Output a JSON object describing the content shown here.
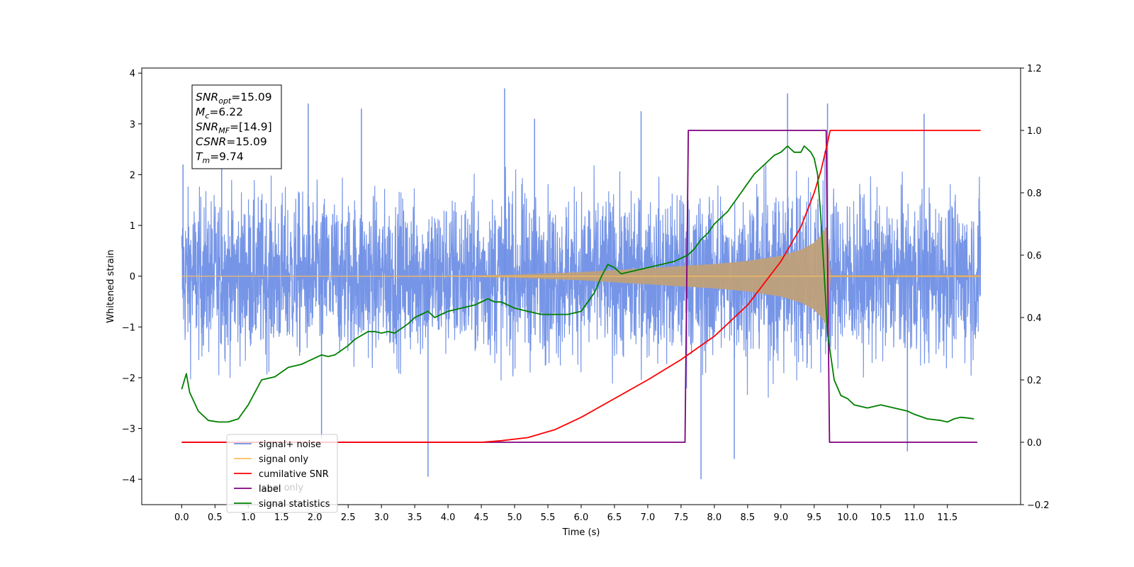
{
  "chart_data": {
    "type": "line",
    "title": "",
    "xlabel": "Time (s)",
    "ylabel": "Whitened strain",
    "ylabel_right": "",
    "xlim": [
      -0.6,
      12.6
    ],
    "ylim_left": [
      -4.5,
      4.1
    ],
    "ylim_right": [
      -0.2,
      1.2
    ],
    "x_ticks": [
      0.0,
      0.5,
      1.0,
      1.5,
      2.0,
      2.5,
      3.0,
      3.5,
      4.0,
      4.5,
      5.0,
      5.5,
      6.0,
      6.5,
      7.0,
      7.5,
      8.0,
      8.5,
      9.0,
      9.5,
      10.0,
      10.5,
      11.0,
      11.5
    ],
    "x_tick_labels": [
      "0.0",
      "0.5",
      "1.0",
      "1.5",
      "2.0",
      "2.5",
      "3.0",
      "3.5",
      "4.0",
      "4.5",
      "5.0",
      "5.5",
      "6.0",
      "6.5",
      "7.0",
      "7.5",
      "8.0",
      "8.5",
      "9.0",
      "9.5",
      "10.0",
      "10.5",
      "11.0",
      "11.5"
    ],
    "y_ticks_left": [
      4,
      3,
      2,
      1,
      0,
      -1,
      -2,
      -3,
      -4
    ],
    "y_tick_labels_left": [
      "4",
      "3",
      "2",
      "1",
      "0",
      "−1",
      "−2",
      "−3",
      "−4"
    ],
    "y_ticks_right": [
      1.2,
      1.0,
      0.8,
      0.6,
      0.4,
      0.2,
      0.0,
      -0.2
    ],
    "y_tick_labels_right": [
      "1.2",
      "1.0",
      "0.8",
      "0.6",
      "0.4",
      "0.2",
      "0.0",
      "−0.2"
    ],
    "grid": false,
    "legend_position": "lower-left",
    "series": [
      {
        "name": "signal+ noise",
        "axis": "left",
        "color": "#6f8fe6",
        "description_x_range": [
          0.0,
          12.0
        ],
        "noise_band": [
          -2.2,
          2.2
        ],
        "spikes_x": [
          0.02,
          0.6,
          1.9,
          2.1,
          2.7,
          3.7,
          4.85,
          5.3,
          6.9,
          7.8,
          8.3,
          9.1,
          9.7,
          10.9,
          11.15
        ],
        "spikes_y": [
          2.2,
          2.7,
          3.4,
          -3.2,
          3.3,
          -3.95,
          3.7,
          3.1,
          3.25,
          -4.0,
          -3.6,
          3.6,
          3.4,
          -3.45,
          3.2
        ]
      },
      {
        "name": "signal only",
        "axis": "left",
        "color": "#ffbf5a",
        "x": [
          0.0,
          4.0,
          5.0,
          6.0,
          6.5,
          7.0,
          7.5,
          8.0,
          8.5,
          9.0,
          9.3,
          9.5,
          9.6,
          9.7,
          9.74,
          12.0
        ],
        "envelope": [
          0.0,
          0.01,
          0.03,
          0.08,
          0.12,
          0.16,
          0.2,
          0.24,
          0.3,
          0.4,
          0.52,
          0.66,
          0.8,
          1.0,
          0.02,
          0.02
        ]
      },
      {
        "name": "cumilative SNR",
        "axis": "right",
        "color": "#ff0000",
        "x": [
          0.0,
          4.5,
          4.8,
          5.2,
          5.6,
          6.0,
          6.5,
          7.0,
          7.5,
          8.0,
          8.5,
          9.0,
          9.3,
          9.5,
          9.6,
          9.7,
          9.74,
          12.0
        ],
        "values": [
          0.0,
          0.0,
          0.005,
          0.015,
          0.04,
          0.08,
          0.14,
          0.2,
          0.265,
          0.34,
          0.44,
          0.58,
          0.69,
          0.8,
          0.87,
          0.96,
          1.0,
          1.0
        ]
      },
      {
        "name": "label",
        "axis": "right",
        "color": "#7f007f",
        "x": [
          0.0,
          7.56,
          7.61,
          9.68,
          9.73,
          11.95
        ],
        "values": [
          0.0,
          0.0,
          1.0,
          1.0,
          0.0,
          0.0
        ]
      },
      {
        "name": "signal statistics",
        "axis": "right",
        "color": "#008000",
        "x": [
          0.0,
          0.07,
          0.12,
          0.25,
          0.4,
          0.55,
          0.7,
          0.85,
          1.0,
          1.2,
          1.4,
          1.6,
          1.8,
          1.9,
          2.0,
          2.1,
          2.2,
          2.3,
          2.5,
          2.6,
          2.8,
          2.9,
          3.0,
          3.1,
          3.2,
          3.4,
          3.5,
          3.7,
          3.8,
          4.0,
          4.2,
          4.4,
          4.5,
          4.6,
          4.7,
          4.8,
          5.0,
          5.2,
          5.4,
          5.6,
          5.8,
          6.0,
          6.2,
          6.3,
          6.4,
          6.5,
          6.6,
          6.8,
          7.0,
          7.2,
          7.4,
          7.6,
          7.7,
          7.8,
          7.9,
          8.0,
          8.2,
          8.4,
          8.5,
          8.6,
          8.8,
          8.9,
          9.0,
          9.1,
          9.2,
          9.3,
          9.35,
          9.4,
          9.45,
          9.5,
          9.55,
          9.6,
          9.65,
          9.7,
          9.8,
          9.9,
          10.0,
          10.1,
          10.3,
          10.5,
          10.7,
          10.9,
          11.0,
          11.2,
          11.4,
          11.5,
          11.6,
          11.7,
          11.8,
          11.9
        ],
        "values": [
          0.17,
          0.22,
          0.16,
          0.1,
          0.07,
          0.065,
          0.065,
          0.075,
          0.12,
          0.2,
          0.21,
          0.24,
          0.25,
          0.26,
          0.27,
          0.28,
          0.275,
          0.28,
          0.31,
          0.33,
          0.355,
          0.355,
          0.35,
          0.355,
          0.35,
          0.38,
          0.4,
          0.42,
          0.4,
          0.42,
          0.43,
          0.44,
          0.45,
          0.46,
          0.45,
          0.45,
          0.43,
          0.42,
          0.41,
          0.41,
          0.41,
          0.42,
          0.48,
          0.53,
          0.57,
          0.56,
          0.54,
          0.55,
          0.56,
          0.57,
          0.58,
          0.6,
          0.62,
          0.65,
          0.67,
          0.7,
          0.74,
          0.8,
          0.83,
          0.86,
          0.9,
          0.92,
          0.93,
          0.95,
          0.93,
          0.93,
          0.95,
          0.94,
          0.93,
          0.91,
          0.86,
          0.72,
          0.54,
          0.35,
          0.2,
          0.15,
          0.14,
          0.12,
          0.11,
          0.12,
          0.11,
          0.1,
          0.09,
          0.075,
          0.07,
          0.065,
          0.075,
          0.08,
          0.078,
          0.075
        ]
      }
    ],
    "annotation": {
      "lines": [
        {
          "var": "SNR",
          "sub": "opt",
          "value": "=15.09"
        },
        {
          "var": "M",
          "sub": "c",
          "value": "=6.22"
        },
        {
          "var": "SNR",
          "sub": "MF",
          "value": "=[14.9]"
        },
        {
          "var": "CSNR",
          "sub": "",
          "value": "=15.09"
        },
        {
          "var": "T",
          "sub": "m",
          "value": "=9.74"
        }
      ]
    },
    "legend_overlap_text": "label only"
  }
}
